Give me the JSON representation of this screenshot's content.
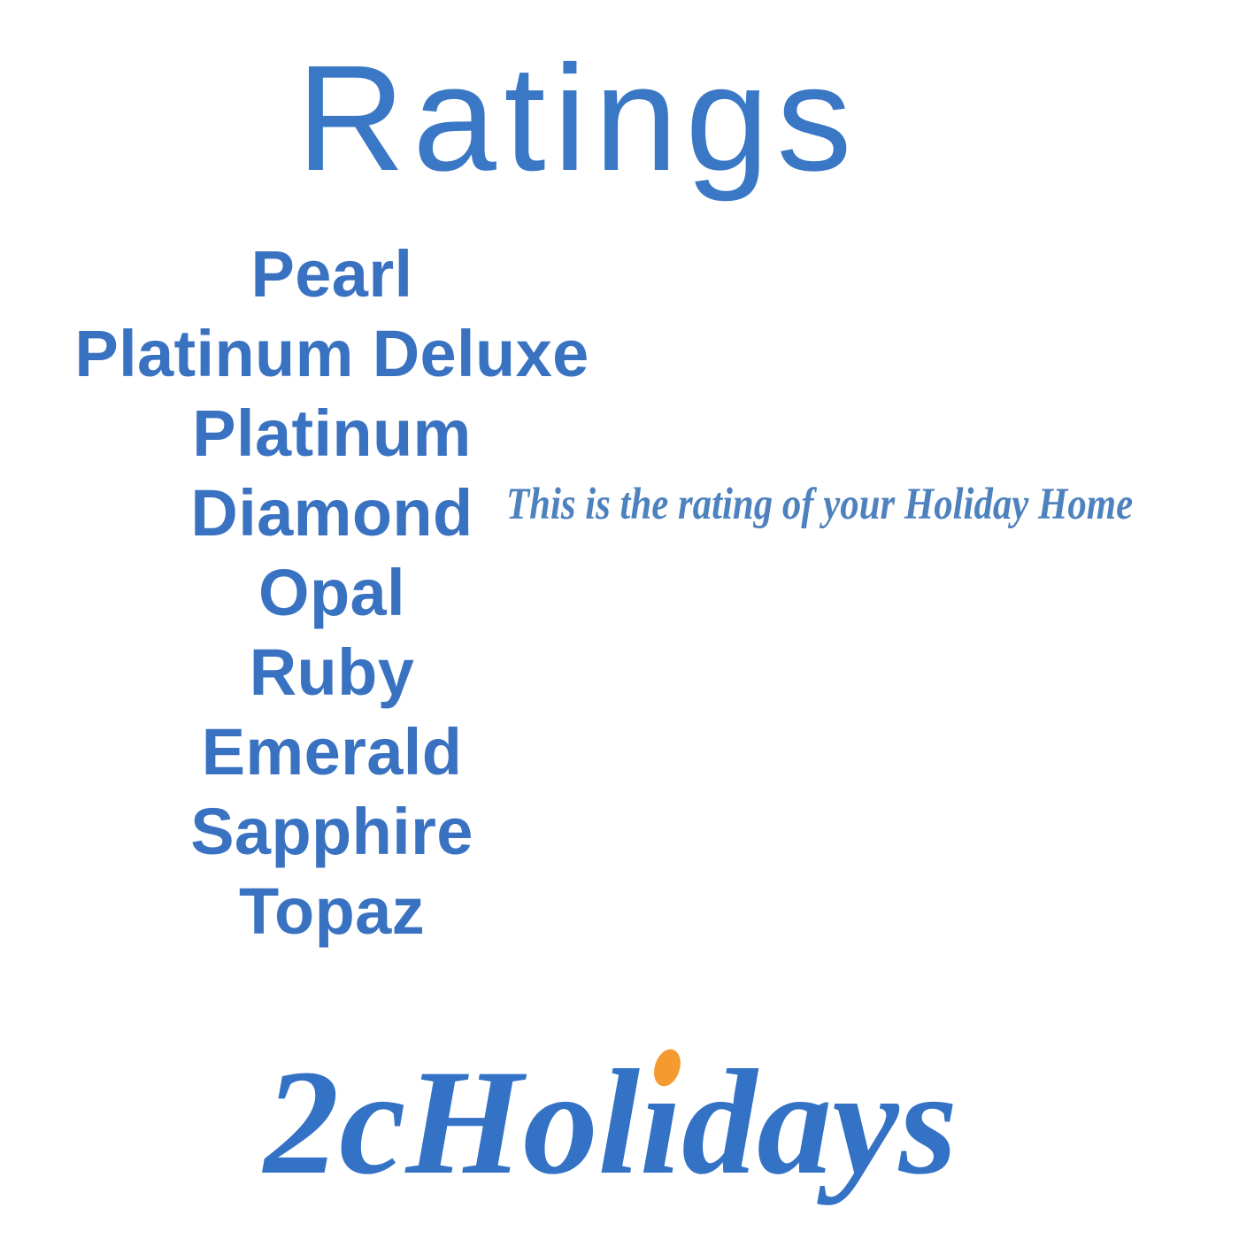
{
  "title": {
    "text": "Ratings"
  },
  "ratings": {
    "items": [
      "Pearl",
      "Platinum Deluxe",
      "Platinum",
      "Diamond",
      "Opal",
      "Ruby",
      "Emerald",
      "Sapphire",
      "Topaz"
    ]
  },
  "note": {
    "text": "This is the rating of your Holiday Home"
  },
  "logo": {
    "text": "2cHolidays",
    "part1": "2cHol",
    "dotless_i": "ı",
    "part2": "days"
  },
  "colors": {
    "background": "#ffffff",
    "title_blue": "#3a78c6",
    "list_blue": "#3a72c2",
    "note_blue": "#4e82be",
    "logo_blue": "#3372c5",
    "logo_dot_orange": "#f49a2f"
  }
}
